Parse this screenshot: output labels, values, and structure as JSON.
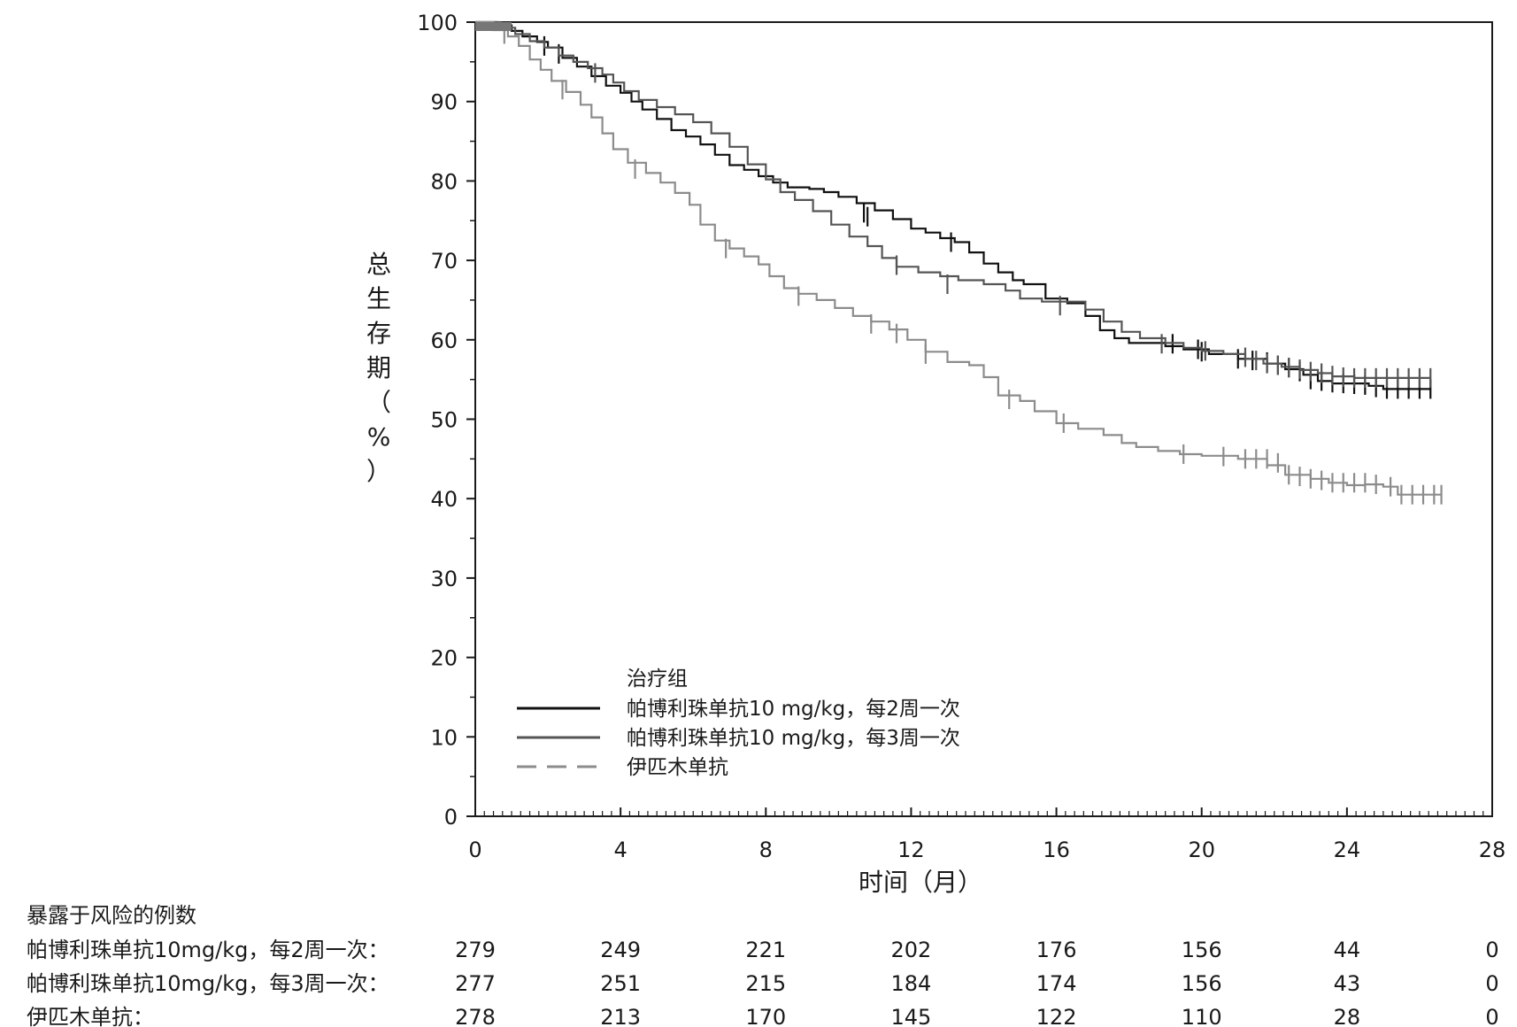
{
  "chart_data": {
    "type": "line",
    "xlabel": "时间（月）",
    "ylabel": [
      "总",
      "生",
      "存",
      "期",
      "（",
      "%",
      "）"
    ],
    "xlim": [
      0,
      28
    ],
    "ylim": [
      0,
      100
    ],
    "xticks": [
      0,
      4,
      8,
      12,
      16,
      20,
      24,
      28
    ],
    "yticks": [
      0,
      10,
      20,
      30,
      40,
      50,
      60,
      70,
      80,
      90,
      100
    ],
    "legend": {
      "title": "治疗组",
      "placement": "lower-left inside plot",
      "entries": [
        {
          "label": "帕博利珠单抗10 mg/kg，每2周一次",
          "color": "#111111",
          "dash": "solid"
        },
        {
          "label": "帕博利珠单抗10 mg/kg，每3周一次",
          "color": "#555555",
          "dash": "solid"
        },
        {
          "label": "伊匹木单抗",
          "color": "#8c8c8c",
          "dash": "dashed"
        }
      ]
    },
    "series": [
      {
        "name": "帕博利珠单抗10 mg/kg，每2周一次",
        "color": "#111111",
        "step_points": [
          [
            0,
            100
          ],
          [
            0.6,
            99.6
          ],
          [
            1.0,
            98.9
          ],
          [
            1.3,
            98.2
          ],
          [
            1.7,
            97.5
          ],
          [
            2.0,
            96.8
          ],
          [
            2.4,
            95.5
          ],
          [
            2.8,
            94.4
          ],
          [
            3.2,
            93.2
          ],
          [
            3.6,
            92.0
          ],
          [
            4.0,
            91.1
          ],
          [
            4.3,
            90.0
          ],
          [
            4.6,
            89.0
          ],
          [
            5.0,
            87.8
          ],
          [
            5.4,
            86.4
          ],
          [
            5.8,
            85.6
          ],
          [
            6.2,
            84.6
          ],
          [
            6.6,
            83.3
          ],
          [
            7.0,
            82.0
          ],
          [
            7.4,
            81.4
          ],
          [
            7.8,
            80.6
          ],
          [
            8.2,
            79.8
          ],
          [
            8.6,
            79.2
          ],
          [
            9.2,
            79.0
          ],
          [
            9.6,
            78.6
          ],
          [
            10.0,
            78.0
          ],
          [
            10.5,
            77.2
          ],
          [
            11.0,
            76.3
          ],
          [
            11.5,
            75.2
          ],
          [
            12.0,
            74.0
          ],
          [
            12.4,
            73.5
          ],
          [
            12.8,
            72.8
          ],
          [
            13.2,
            72.3
          ],
          [
            13.6,
            71.0
          ],
          [
            14.0,
            69.6
          ],
          [
            14.4,
            68.5
          ],
          [
            14.8,
            67.5
          ],
          [
            15.1,
            67.0
          ],
          [
            15.7,
            65.2
          ],
          [
            16.3,
            64.6
          ],
          [
            16.8,
            63.0
          ],
          [
            17.2,
            61.2
          ],
          [
            17.6,
            60.2
          ],
          [
            18.0,
            59.6
          ],
          [
            19.0,
            59.2
          ],
          [
            19.5,
            58.8
          ],
          [
            20.2,
            58.2
          ],
          [
            21.0,
            57.6
          ],
          [
            21.8,
            57.0
          ],
          [
            22.3,
            56.3
          ],
          [
            22.8,
            55.6
          ],
          [
            23.2,
            54.8
          ],
          [
            23.6,
            54.5
          ],
          [
            24.6,
            54.2
          ],
          [
            25.0,
            53.8
          ],
          [
            26.3,
            53.8
          ]
        ],
        "censor": [
          [
            1.9,
            97.0
          ],
          [
            2.3,
            96.0
          ],
          [
            10.7,
            76.0
          ],
          [
            10.8,
            75.5
          ],
          [
            13.1,
            72.3
          ],
          [
            19.2,
            59.5
          ],
          [
            19.9,
            58.8
          ],
          [
            20.0,
            58.5
          ],
          [
            21.0,
            57.6
          ],
          [
            21.4,
            57.4
          ],
          [
            21.8,
            57.2
          ],
          [
            22.1,
            56.8
          ],
          [
            22.4,
            56.5
          ],
          [
            22.7,
            56.0
          ],
          [
            23.0,
            55.0
          ],
          [
            23.3,
            54.8
          ],
          [
            23.6,
            54.6
          ],
          [
            23.9,
            54.5
          ],
          [
            24.2,
            54.4
          ],
          [
            24.5,
            54.3
          ],
          [
            24.8,
            54.0
          ],
          [
            25.1,
            53.8
          ],
          [
            25.4,
            53.8
          ],
          [
            25.7,
            53.8
          ],
          [
            26.0,
            53.8
          ],
          [
            26.3,
            53.8
          ]
        ]
      },
      {
        "name": "帕博利珠单抗10 mg/kg，每3周一次",
        "color": "#555555",
        "step_points": [
          [
            0,
            100
          ],
          [
            0.7,
            99.3
          ],
          [
            1.1,
            98.5
          ],
          [
            1.5,
            97.6
          ],
          [
            1.9,
            96.8
          ],
          [
            2.3,
            95.8
          ],
          [
            2.7,
            95.0
          ],
          [
            3.1,
            94.2
          ],
          [
            3.5,
            93.4
          ],
          [
            3.8,
            92.4
          ],
          [
            4.1,
            91.3
          ],
          [
            4.5,
            90.2
          ],
          [
            5.0,
            89.3
          ],
          [
            5.5,
            88.4
          ],
          [
            6.0,
            87.4
          ],
          [
            6.5,
            86.0
          ],
          [
            7.0,
            84.3
          ],
          [
            7.5,
            82.1
          ],
          [
            8.0,
            80.2
          ],
          [
            8.4,
            78.6
          ],
          [
            8.8,
            77.6
          ],
          [
            9.3,
            76.2
          ],
          [
            9.8,
            74.5
          ],
          [
            10.3,
            73.0
          ],
          [
            10.8,
            71.8
          ],
          [
            11.2,
            70.3
          ],
          [
            11.6,
            69.2
          ],
          [
            12.2,
            68.5
          ],
          [
            12.8,
            68.0
          ],
          [
            13.3,
            67.5
          ],
          [
            14.0,
            67.0
          ],
          [
            14.6,
            66.2
          ],
          [
            15.0,
            65.2
          ],
          [
            15.6,
            64.8
          ],
          [
            16.3,
            64.8
          ],
          [
            16.8,
            63.8
          ],
          [
            17.3,
            62.3
          ],
          [
            17.8,
            61.0
          ],
          [
            18.3,
            60.2
          ],
          [
            19.0,
            59.6
          ],
          [
            19.5,
            59.0
          ],
          [
            20.0,
            58.6
          ],
          [
            20.6,
            58.2
          ],
          [
            21.2,
            57.6
          ],
          [
            21.7,
            57.0
          ],
          [
            22.2,
            56.6
          ],
          [
            22.7,
            56.2
          ],
          [
            23.2,
            55.8
          ],
          [
            23.6,
            55.4
          ],
          [
            24.2,
            55.2
          ],
          [
            26.3,
            55.2
          ]
        ],
        "censor": [
          [
            3.3,
            93.6
          ],
          [
            11.6,
            69.4
          ],
          [
            13.0,
            67.0
          ],
          [
            16.1,
            64.3
          ],
          [
            18.9,
            59.5
          ],
          [
            20.1,
            58.6
          ],
          [
            21.2,
            57.8
          ],
          [
            21.5,
            57.4
          ],
          [
            21.8,
            57.0
          ],
          [
            22.1,
            56.8
          ],
          [
            22.4,
            56.5
          ],
          [
            22.7,
            56.3
          ],
          [
            23.0,
            56.0
          ],
          [
            23.3,
            55.8
          ],
          [
            23.6,
            55.5
          ],
          [
            23.9,
            55.3
          ],
          [
            24.2,
            55.2
          ],
          [
            24.5,
            55.2
          ],
          [
            24.8,
            55.2
          ],
          [
            25.1,
            55.2
          ],
          [
            25.4,
            55.2
          ],
          [
            25.7,
            55.2
          ],
          [
            26.0,
            55.2
          ],
          [
            26.3,
            55.2
          ]
        ]
      },
      {
        "name": "伊匹木单抗",
        "color": "#8c8c8c",
        "step_points": [
          [
            0,
            100
          ],
          [
            0.5,
            99.0
          ],
          [
            0.9,
            98.2
          ],
          [
            1.2,
            97.0
          ],
          [
            1.5,
            95.3
          ],
          [
            1.8,
            94.0
          ],
          [
            2.1,
            92.6
          ],
          [
            2.5,
            91.2
          ],
          [
            2.9,
            89.6
          ],
          [
            3.2,
            88.0
          ],
          [
            3.5,
            86.0
          ],
          [
            3.8,
            84.0
          ],
          [
            4.2,
            82.3
          ],
          [
            4.7,
            81.0
          ],
          [
            5.1,
            79.8
          ],
          [
            5.5,
            78.5
          ],
          [
            5.9,
            77.0
          ],
          [
            6.2,
            74.5
          ],
          [
            6.6,
            72.5
          ],
          [
            7.0,
            71.5
          ],
          [
            7.4,
            70.5
          ],
          [
            7.8,
            69.5
          ],
          [
            8.1,
            68.0
          ],
          [
            8.5,
            66.5
          ],
          [
            8.9,
            65.8
          ],
          [
            9.4,
            65.0
          ],
          [
            9.9,
            64.0
          ],
          [
            10.4,
            63.0
          ],
          [
            10.9,
            62.3
          ],
          [
            11.4,
            61.3
          ],
          [
            11.9,
            60.0
          ],
          [
            12.4,
            58.5
          ],
          [
            13.0,
            57.2
          ],
          [
            13.6,
            56.8
          ],
          [
            14.0,
            55.3
          ],
          [
            14.4,
            53.0
          ],
          [
            15.0,
            52.3
          ],
          [
            15.4,
            51.0
          ],
          [
            16.0,
            49.5
          ],
          [
            16.6,
            48.8
          ],
          [
            17.3,
            48.0
          ],
          [
            17.8,
            47.0
          ],
          [
            18.2,
            46.5
          ],
          [
            18.8,
            46.0
          ],
          [
            19.4,
            45.6
          ],
          [
            20.0,
            45.4
          ],
          [
            21.0,
            45.0
          ],
          [
            21.8,
            44.2
          ],
          [
            22.3,
            43.0
          ],
          [
            23.0,
            42.5
          ],
          [
            23.5,
            42.0
          ],
          [
            24.0,
            41.7
          ],
          [
            24.5,
            41.8
          ],
          [
            25.0,
            41.5
          ],
          [
            25.4,
            40.5
          ],
          [
            26.6,
            40.5
          ]
        ],
        "censor": [
          [
            0.8,
            98.5
          ],
          [
            2.4,
            91.5
          ],
          [
            4.4,
            81.5
          ],
          [
            6.9,
            71.5
          ],
          [
            8.9,
            65.5
          ],
          [
            10.9,
            62.0
          ],
          [
            11.6,
            60.8
          ],
          [
            12.4,
            58.2
          ],
          [
            14.7,
            52.5
          ],
          [
            16.2,
            49.5
          ],
          [
            19.5,
            45.6
          ],
          [
            20.6,
            45.3
          ],
          [
            21.2,
            45.0
          ],
          [
            21.5,
            45.0
          ],
          [
            21.8,
            45.0
          ],
          [
            22.1,
            44.5
          ],
          [
            22.4,
            43.0
          ],
          [
            22.7,
            42.8
          ],
          [
            23.0,
            42.5
          ],
          [
            23.3,
            42.3
          ],
          [
            23.6,
            42.0
          ],
          [
            23.9,
            42.0
          ],
          [
            24.2,
            42.0
          ],
          [
            24.5,
            42.0
          ],
          [
            24.8,
            41.8
          ],
          [
            25.2,
            41.5
          ],
          [
            25.5,
            40.5
          ],
          [
            25.8,
            40.5
          ],
          [
            26.1,
            40.5
          ],
          [
            26.4,
            40.5
          ],
          [
            26.6,
            40.5
          ]
        ]
      }
    ],
    "risk_table": {
      "title": "暴露于风险的例数",
      "rows": [
        {
          "label": "帕博利珠单抗10mg/kg，每2周一次：",
          "values": [
            279,
            249,
            221,
            202,
            176,
            156,
            44,
            0
          ]
        },
        {
          "label": "帕博利珠单抗10mg/kg，每3周一次：",
          "values": [
            277,
            251,
            215,
            184,
            174,
            156,
            43,
            0
          ]
        },
        {
          "label": "伊匹木单抗：",
          "values": [
            278,
            213,
            170,
            145,
            122,
            110,
            28,
            0
          ]
        }
      ]
    }
  }
}
